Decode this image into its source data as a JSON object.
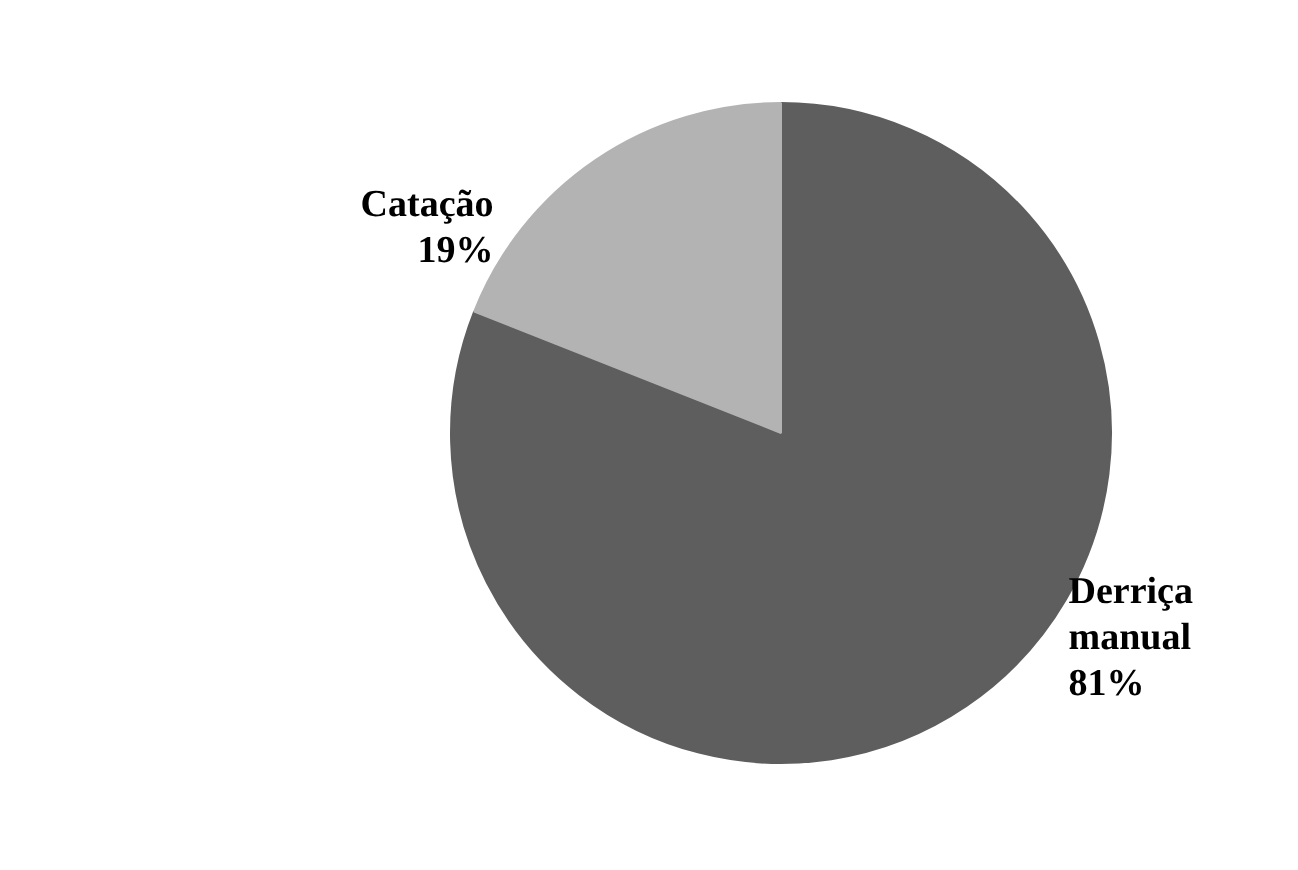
{
  "chart_data": {
    "type": "pie",
    "categories": [
      "Derriça manual",
      "Catação"
    ],
    "values": [
      81,
      19
    ],
    "colors": [
      "#5e5e5e",
      "#b3b3b3"
    ],
    "value_labels": [
      "81%",
      "19%"
    ]
  }
}
